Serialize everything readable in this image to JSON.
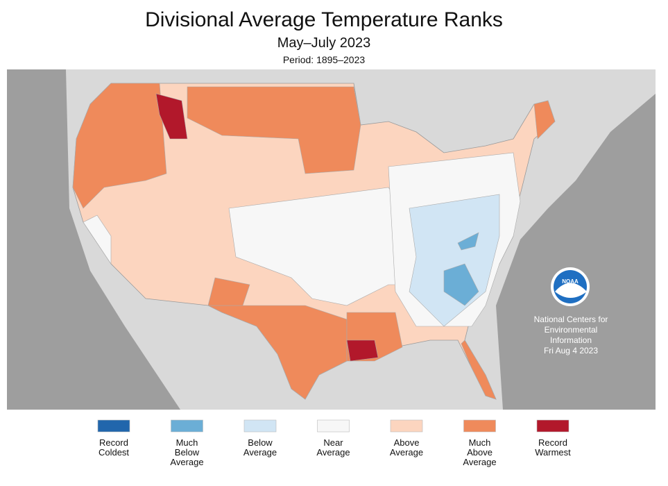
{
  "header": {
    "title": "Divisional Average Temperature Ranks",
    "subtitle": "May–July 2023",
    "period": "Period: 1895–2023"
  },
  "credit": {
    "lines": [
      "National Centers for",
      "Environmental",
      "Information",
      "Fri Aug  4 2023"
    ],
    "logo": "NOAA"
  },
  "legend": [
    {
      "lines": [
        "Record",
        "Coldest"
      ],
      "color": "#2166ac"
    },
    {
      "lines": [
        "Much",
        "Below",
        "Average"
      ],
      "color": "#6baed6"
    },
    {
      "lines": [
        "Below",
        "Average"
      ],
      "color": "#d1e5f4"
    },
    {
      "lines": [
        "Near",
        "Average"
      ],
      "color": "#f7f7f7"
    },
    {
      "lines": [
        "Above",
        "Average"
      ],
      "color": "#fcd5bf"
    },
    {
      "lines": [
        "Much",
        "Above",
        "Average"
      ],
      "color": "#ef8a5b"
    },
    {
      "lines": [
        "Record",
        "Warmest"
      ],
      "color": "#b2182b"
    }
  ]
}
